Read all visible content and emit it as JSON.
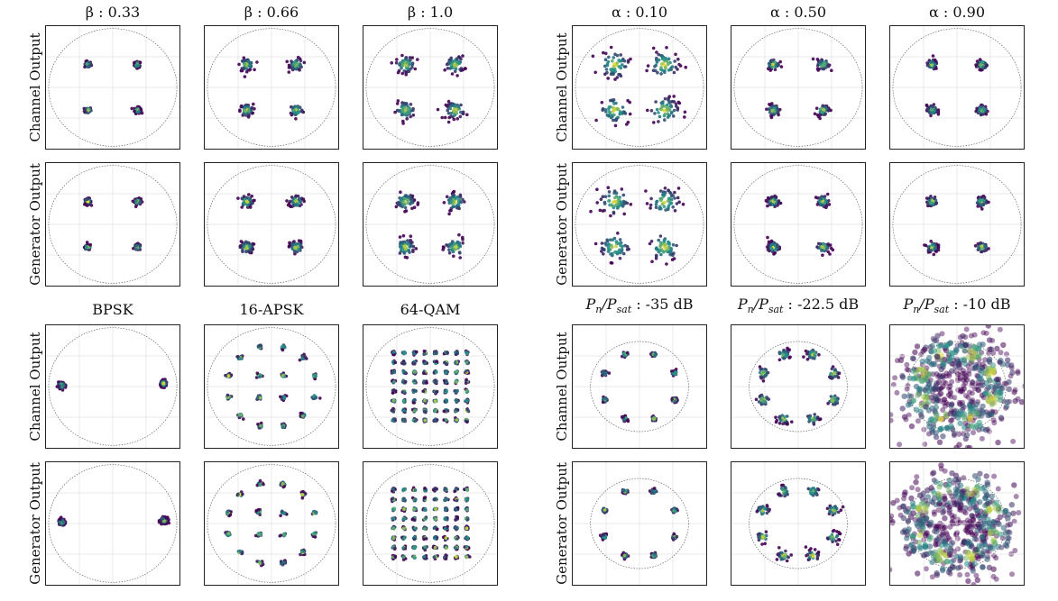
{
  "chart_data": [
    {
      "group": "rolloff",
      "type": "scatter",
      "quadrant": "top-left",
      "row_labels": [
        "Channel Output",
        "Generator Output"
      ],
      "columns": [
        {
          "title": "β : 0.33",
          "constellation": "QPSK",
          "spread": 0.05
        },
        {
          "title": "β : 0.66",
          "constellation": "QPSK",
          "spread": 0.1
        },
        {
          "title": "β : 1.0",
          "constellation": "QPSK",
          "spread": 0.14
        }
      ]
    },
    {
      "group": "memory",
      "type": "scatter",
      "quadrant": "top-right",
      "row_labels": [
        "Channel Output",
        "Generator Output"
      ],
      "columns": [
        {
          "title": "α : 0.10",
          "constellation": "QPSK",
          "spread": 0.22
        },
        {
          "title": "α : 0.50",
          "constellation": "QPSK",
          "spread": 0.09
        },
        {
          "title": "α : 0.90",
          "constellation": "QPSK",
          "spread": 0.08
        }
      ]
    },
    {
      "group": "modulation",
      "type": "scatter",
      "quadrant": "bottom-left",
      "row_labels": [
        "Channel Output",
        "Generator Output"
      ],
      "columns": [
        {
          "title": "BPSK",
          "constellation": "BPSK",
          "spread": 0.05
        },
        {
          "title": "16-APSK",
          "constellation": "16-APSK",
          "spread": 0.04
        },
        {
          "title": "64-QAM",
          "constellation": "64-QAM",
          "spread": 0.025
        }
      ]
    },
    {
      "group": "noise",
      "type": "scatter",
      "quadrant": "bottom-right",
      "row_labels": [
        "Channel Output",
        "Generator Output"
      ],
      "columns": [
        {
          "title_main": "P",
          "title_sub1": "n",
          "title_mid": "/P",
          "title_sub2": "sat",
          "title_value": " : -35 dB",
          "constellation": "8-PSK",
          "spread": 0.04
        },
        {
          "title_main": "P",
          "title_sub1": "n",
          "title_mid": "/P",
          "title_sub2": "sat",
          "title_value": " : -22.5 dB",
          "constellation": "8-PSK",
          "spread": 0.09
        },
        {
          "title_main": "P",
          "title_sub1": "n",
          "title_mid": "/P",
          "title_sub2": "sat",
          "title_value": " : -10 dB",
          "constellation": "8-PSK",
          "spread": 0.35
        }
      ]
    }
  ],
  "colors": {
    "low": "#440154",
    "mid": "#21918c",
    "high": "#fde725",
    "circle": "#666666",
    "grid": "#e2e2e2"
  }
}
